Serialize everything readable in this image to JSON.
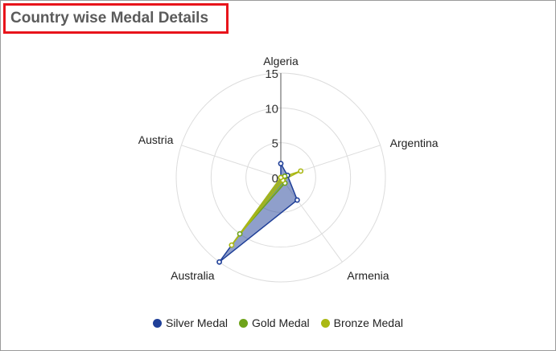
{
  "chart_data": {
    "type": "radar",
    "title": "Country wise Medal Details",
    "categories": [
      "Algeria",
      "Argentina",
      "Armenia",
      "Australia",
      "Austria"
    ],
    "rlim": [
      0,
      15
    ],
    "rticks": [
      "0",
      "5",
      "10",
      "15"
    ],
    "grid": true,
    "legend_position": "bottom",
    "series": [
      {
        "name": "Silver Medal",
        "values": [
          2,
          1,
          4,
          15,
          0
        ],
        "color": "#1f3f98"
      },
      {
        "name": "Gold Medal",
        "values": [
          0,
          0.6,
          1,
          10,
          0
        ],
        "color": "#6ea31a"
      },
      {
        "name": "Bronze Medal",
        "values": [
          0,
          3,
          0.5,
          12,
          0
        ],
        "color": "#aab813"
      }
    ]
  }
}
